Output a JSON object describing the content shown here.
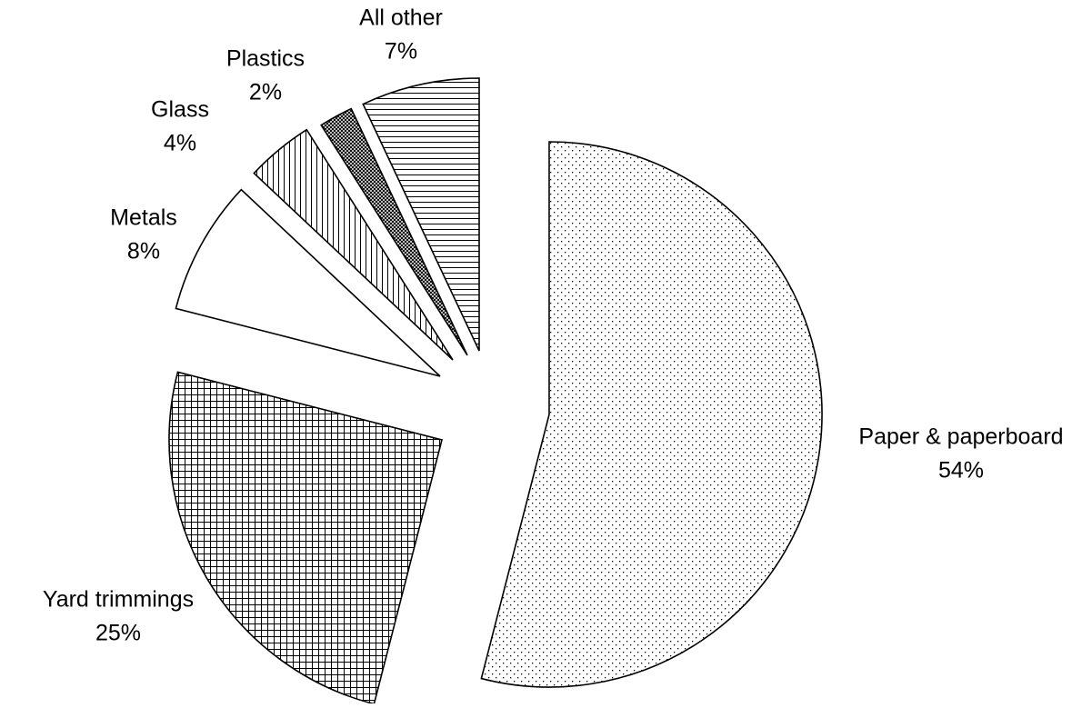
{
  "chart_data": {
    "type": "pie",
    "title": "",
    "slices": [
      {
        "name": "Paper & paperboard",
        "value": 54,
        "value_label": "54%",
        "pattern": "dots"
      },
      {
        "name": "Yard trimmings",
        "value": 25,
        "value_label": "25%",
        "pattern": "grid"
      },
      {
        "name": "Metals",
        "value": 8,
        "value_label": "8%",
        "pattern": "none"
      },
      {
        "name": "Glass",
        "value": 4,
        "value_label": "4%",
        "pattern": "vertical-lines"
      },
      {
        "name": "Plastics",
        "value": 2,
        "value_label": "2%",
        "pattern": "crosshatch-dense"
      },
      {
        "name": "All other",
        "value": 7,
        "value_label": "7%",
        "pattern": "horizontal-lines"
      }
    ],
    "start_angle": "12 o'clock",
    "direction": "clockwise",
    "exploded": true,
    "legend": "none (labels beside slices)"
  },
  "colors": {
    "stroke": "#000000",
    "fill": "#ffffff",
    "pattern_ink": "#000000"
  }
}
